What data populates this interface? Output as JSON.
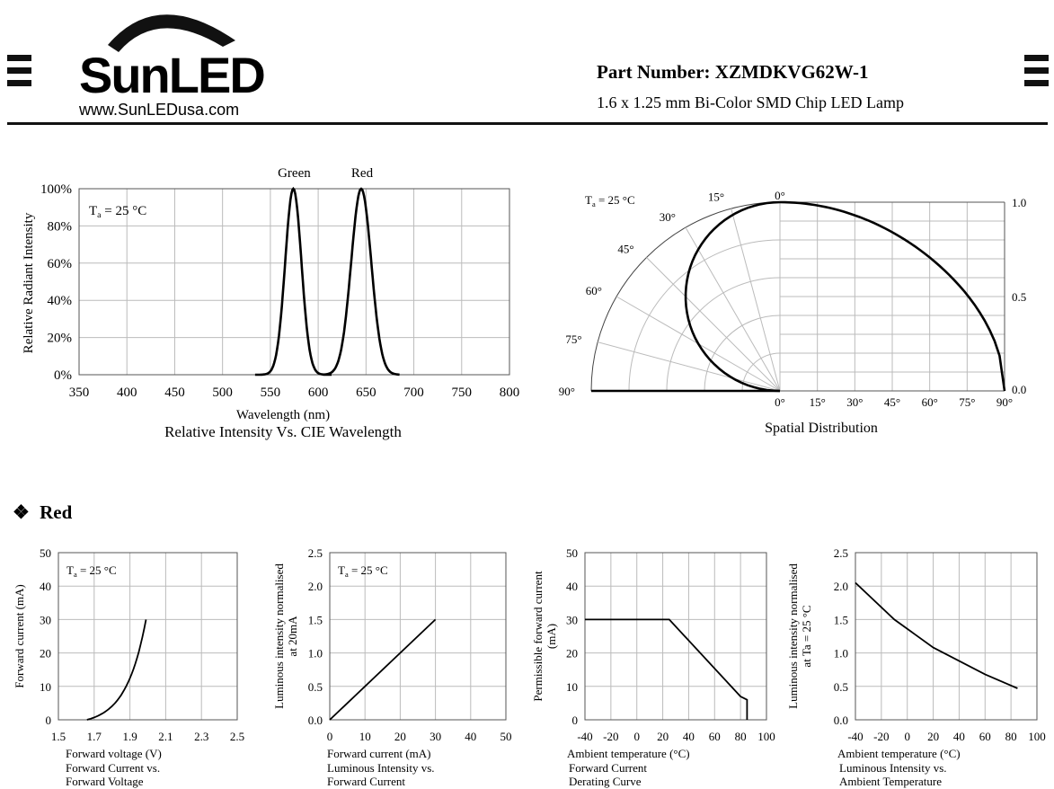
{
  "header": {
    "logo_text": "SunLED",
    "website": "www.SunLEDusa.com",
    "part_number": "Part Number: XZMDKVG62W-1",
    "description": "1.6 x 1.25 mm Bi-Color SMD Chip LED Lamp"
  },
  "section": {
    "marker": "❖",
    "title": "Red"
  },
  "chart_data": [
    {
      "type": "line",
      "title": "Relative Intensity Vs. CIE Wavelength",
      "xlabel": "Wavelength (nm)",
      "ylabel": "Relative Radiant Intensity",
      "annotation": "Ta = 25 °C",
      "xlim": [
        350,
        800
      ],
      "ylim": [
        0,
        100
      ],
      "x_ticks": [
        "350",
        "400",
        "450",
        "500",
        "550",
        "600",
        "650",
        "700",
        "750",
        "800"
      ],
      "y_ticks": [
        "0%",
        "20%",
        "40%",
        "60%",
        "80%",
        "100%"
      ],
      "series": [
        {
          "name": "Green",
          "peak": 574,
          "values_x": [
            550,
            560,
            565,
            570,
            574,
            578,
            583,
            588,
            595,
            600
          ],
          "values_y": [
            0,
            8,
            38,
            80,
            100,
            80,
            38,
            8,
            1,
            0
          ]
        },
        {
          "name": "Red",
          "peak": 645,
          "values_x": [
            600,
            615,
            625,
            635,
            641,
            645,
            649,
            655,
            665,
            675,
            690
          ],
          "values_y": [
            0,
            3,
            15,
            55,
            90,
            100,
            90,
            55,
            15,
            3,
            0
          ]
        }
      ]
    },
    {
      "type": "line",
      "title": "Spatial Distribution",
      "annotation": "Ta = 25 °C",
      "angle_labels": [
        "0°",
        "15°",
        "30°",
        "45°",
        "60°",
        "75°",
        "90°"
      ],
      "bottom_ticks": [
        "0°",
        "15°",
        "30°",
        "45°",
        "60°",
        "75°",
        "90°"
      ],
      "right_ticks": [
        "1.0",
        "0.5",
        "0.0"
      ],
      "series": [
        {
          "angles": [
            0,
            15,
            30,
            45,
            60,
            75,
            90
          ],
          "values": [
            1.0,
            0.97,
            0.88,
            0.74,
            0.55,
            0.3,
            0.0
          ]
        }
      ]
    },
    {
      "type": "line",
      "title": "Forward Current vs. Forward Voltage",
      "title_lines": [
        "Forward Current vs.",
        "Forward Voltage"
      ],
      "xlabel": "Forward voltage (V)",
      "ylabel": "Forward current (mA)",
      "annotation": "Ta = 25 °C",
      "xlim": [
        1.5,
        2.5
      ],
      "ylim": [
        0,
        50
      ],
      "x_ticks": [
        "1.5",
        "1.7",
        "1.9",
        "2.1",
        "2.3",
        "2.5"
      ],
      "y_ticks": [
        "0",
        "10",
        "20",
        "30",
        "40",
        "50"
      ],
      "x": [
        1.66,
        1.72,
        1.77,
        1.82,
        1.86,
        1.9,
        1.93,
        1.96,
        1.99
      ],
      "y": [
        0,
        1,
        2.5,
        5,
        9,
        14,
        20,
        26,
        30
      ]
    },
    {
      "type": "line",
      "title": "Luminous Intensity vs. Forward Current",
      "title_lines": [
        "Luminous Intensity vs.",
        "Forward Current"
      ],
      "xlabel": "Forward current (mA)",
      "ylabel_lines": [
        "Luminous intensity normalised",
        "at 20mA"
      ],
      "annotation": "Ta = 25 °C",
      "xlim": [
        0,
        50
      ],
      "ylim": [
        0,
        2.5
      ],
      "x_ticks": [
        "0",
        "10",
        "20",
        "30",
        "40",
        "50"
      ],
      "y_ticks": [
        "0.0",
        "0.5",
        "1.0",
        "1.5",
        "2.0",
        "2.5"
      ],
      "x": [
        0,
        30
      ],
      "y": [
        0,
        1.5
      ]
    },
    {
      "type": "line",
      "title": "Forward Current Derating  Curve",
      "title_lines": [
        "Forward Current",
        "Derating  Curve"
      ],
      "xlabel": "Ambient temperature (°C)",
      "ylabel_lines": [
        "Permissible forward current",
        "(mA)"
      ],
      "xlim": [
        -40,
        100
      ],
      "ylim": [
        0,
        50
      ],
      "x_ticks": [
        "-40",
        "-20",
        "0",
        "20",
        "40",
        "60",
        "80",
        "100"
      ],
      "y_ticks": [
        "0",
        "10",
        "20",
        "30",
        "40",
        "50"
      ],
      "x": [
        -40,
        25,
        80,
        85,
        85
      ],
      "y": [
        30,
        30,
        7,
        6,
        0
      ]
    },
    {
      "type": "line",
      "title": "Luminous Intensity vs. Ambient Temperature",
      "title_lines": [
        "Luminous Intensity vs.",
        "Ambient Temperature"
      ],
      "xlabel": "Ambient temperature (°C)",
      "ylabel_lines": [
        "Luminous intensity normalised",
        "at Ta = 25 °C"
      ],
      "xlim": [
        -40,
        100
      ],
      "ylim": [
        0,
        2.5
      ],
      "x_ticks": [
        "-40",
        "-20",
        "0",
        "20",
        "40",
        "60",
        "80",
        "100"
      ],
      "y_ticks": [
        "0.0",
        "0.5",
        "1.0",
        "1.5",
        "2.0",
        "2.5"
      ],
      "x": [
        -40,
        -10,
        20,
        60,
        85
      ],
      "y": [
        2.05,
        1.5,
        1.08,
        0.68,
        0.47
      ]
    }
  ]
}
